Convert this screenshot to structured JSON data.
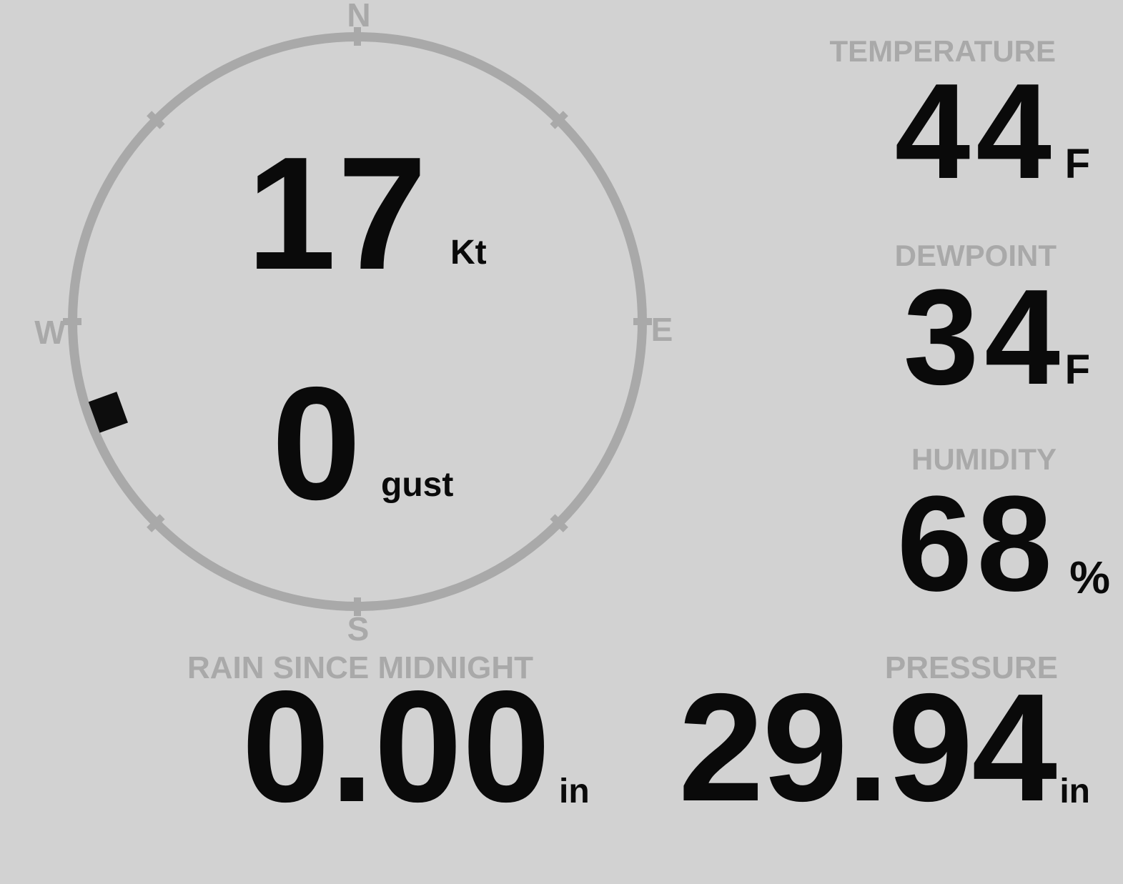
{
  "colors": {
    "background": "#d2d2d2",
    "muted_gray": "#a9a9a9",
    "value_black": "#0a0a0a"
  },
  "wind": {
    "speed_value": "17",
    "speed_unit": "Kt",
    "gust_value": "0",
    "gust_unit": "gust",
    "direction_deg": 250,
    "compass": {
      "north": "N",
      "east": "E",
      "south": "S",
      "west": "W"
    }
  },
  "metrics": {
    "temperature": {
      "label": "TEMPERATURE",
      "value": "44",
      "unit": "F"
    },
    "dewpoint": {
      "label": "DEWPOINT",
      "value": "34",
      "unit": "F"
    },
    "humidity": {
      "label": "HUMIDITY",
      "value": "68",
      "unit": "%"
    },
    "rain": {
      "label": "RAIN SINCE MIDNIGHT",
      "value": "0.00",
      "unit": "in"
    },
    "pressure": {
      "label": "PRESSURE",
      "value": "29.94",
      "unit": "in"
    }
  }
}
